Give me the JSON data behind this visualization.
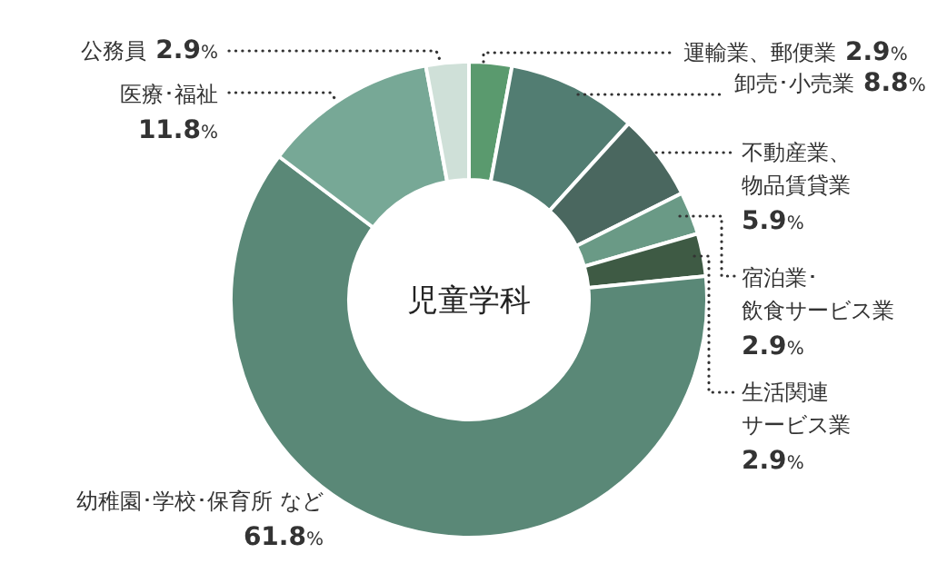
{
  "chart_data": {
    "type": "donut",
    "title": "児童学科",
    "categories": [
      "運輸業、郵便業",
      "卸売･小売業",
      "不動産業、物品賃貸業",
      "宿泊業･飲食サービス業",
      "生活関連サービス業",
      "幼稚園･学校･保育所 など",
      "医療･福祉",
      "公務員"
    ],
    "values": [
      2.9,
      8.8,
      5.9,
      2.9,
      2.9,
      61.8,
      11.8,
      2.9
    ],
    "value_labels": [
      "2.9%",
      "8.8%",
      "5.9%",
      "2.9%",
      "2.9%",
      "61.8%",
      "11.8%",
      "2.9%"
    ],
    "colors": [
      "#5a9a6e",
      "#527d72",
      "#4a675f",
      "#6a9a86",
      "#3e5a44",
      "#5a8877",
      "#77a896",
      "#cfe0d8"
    ]
  }
}
